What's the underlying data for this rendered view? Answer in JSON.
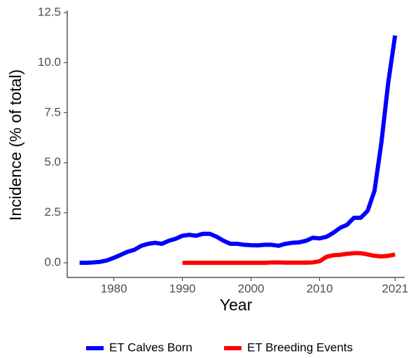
{
  "chart_data": {
    "type": "line",
    "x_label": "Year",
    "y_label": "Incidence (% of total)",
    "x": [
      1975,
      1976,
      1977,
      1978,
      1979,
      1980,
      1981,
      1982,
      1983,
      1984,
      1985,
      1986,
      1987,
      1988,
      1989,
      1990,
      1991,
      1992,
      1993,
      1994,
      1995,
      1996,
      1997,
      1998,
      1999,
      2000,
      2001,
      2002,
      2003,
      2004,
      2005,
      2006,
      2007,
      2008,
      2009,
      2010,
      2011,
      2012,
      2013,
      2014,
      2015,
      2016,
      2017,
      2018,
      2019,
      2020,
      2021
    ],
    "series": [
      {
        "name": "ET Calves Born",
        "color": "#0000ff",
        "values": [
          0.0,
          0.0,
          0.02,
          0.05,
          0.12,
          0.25,
          0.4,
          0.55,
          0.65,
          0.85,
          0.95,
          1.0,
          0.95,
          1.1,
          1.2,
          1.35,
          1.4,
          1.35,
          1.45,
          1.45,
          1.3,
          1.1,
          0.95,
          0.95,
          0.9,
          0.88,
          0.87,
          0.9,
          0.9,
          0.85,
          0.95,
          1.0,
          1.02,
          1.1,
          1.25,
          1.22,
          1.3,
          1.5,
          1.75,
          1.9,
          2.25,
          2.25,
          2.6,
          3.6,
          6.0,
          9.0,
          11.35
        ]
      },
      {
        "name": "ET Breeding Events",
        "color": "#ff0000",
        "values": [
          null,
          null,
          null,
          null,
          null,
          null,
          null,
          null,
          null,
          null,
          null,
          null,
          null,
          null,
          null,
          0.0,
          0.0,
          0.0,
          0.0,
          0.0,
          0.0,
          0.0,
          0.0,
          0.0,
          0.0,
          0.0,
          0.0,
          0.0,
          0.02,
          0.02,
          0.01,
          0.01,
          0.01,
          0.01,
          0.02,
          0.08,
          0.3,
          0.38,
          0.4,
          0.45,
          0.48,
          0.48,
          0.42,
          0.35,
          0.32,
          0.35,
          0.42
        ]
      }
    ],
    "xlim": [
      1973.2,
      2022.4
    ],
    "xticks": [
      1980,
      1990,
      2000,
      2010,
      2021
    ],
    "ylim": [
      -0.73,
      12.6
    ],
    "yticks": [
      {
        "value": 0,
        "label": "0.0"
      },
      {
        "value": 2.5,
        "label": "2.5"
      },
      {
        "value": 5,
        "label": "5.0"
      },
      {
        "value": 7.5,
        "label": "7.5"
      },
      {
        "value": 10,
        "label": "10.0"
      },
      {
        "value": 12.5,
        "label": "12.5"
      }
    ],
    "legend": "bottom"
  }
}
